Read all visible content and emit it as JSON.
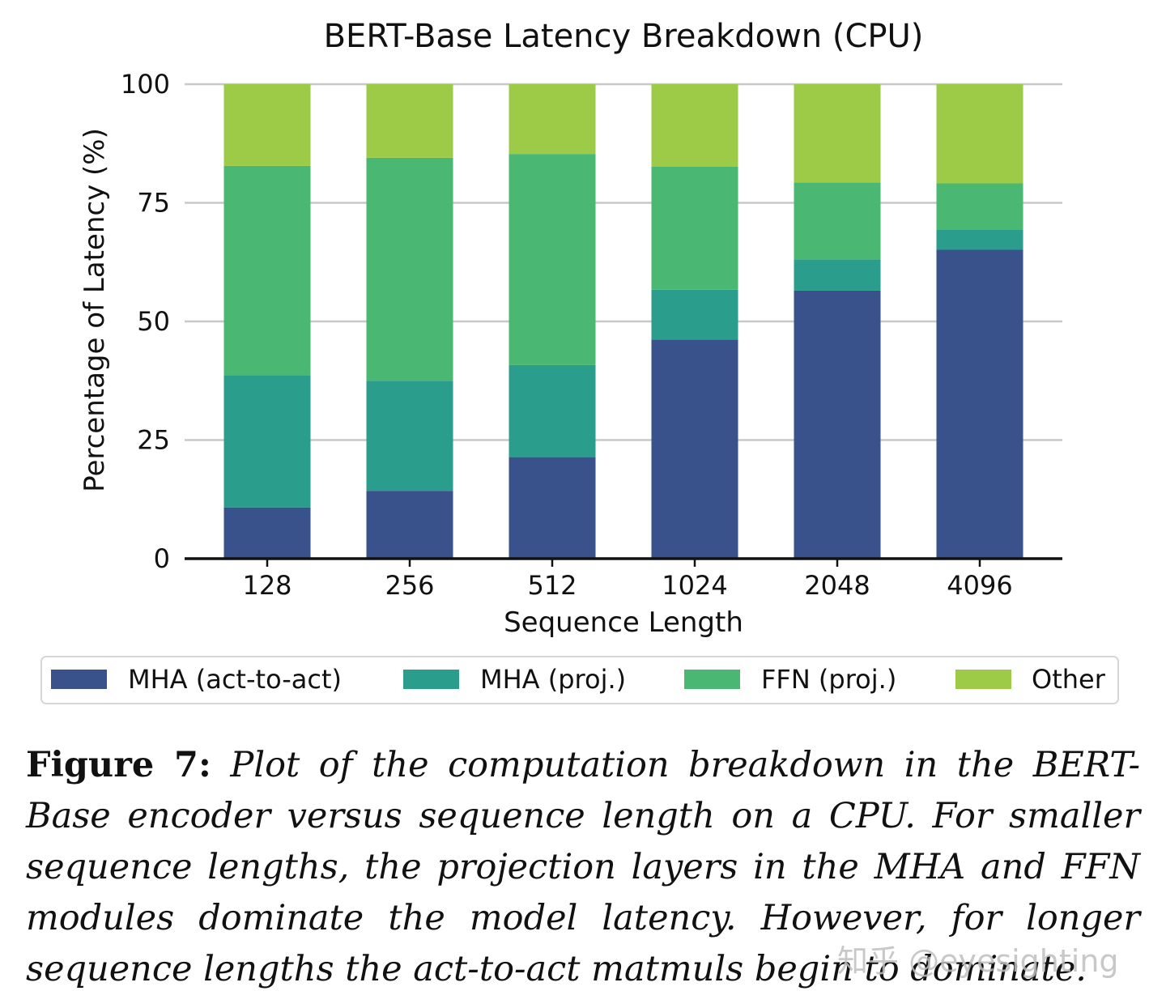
{
  "chart_data": {
    "type": "bar",
    "stacked": true,
    "title": "BERT-Base Latency Breakdown (CPU)",
    "xlabel": "Sequence Length",
    "ylabel": "Percentage of Latency (%)",
    "categories": [
      "128",
      "256",
      "512",
      "1024",
      "2048",
      "4096"
    ],
    "ylim": [
      0,
      100
    ],
    "yticks": [
      0,
      25,
      50,
      75,
      100
    ],
    "grid": "horizontal",
    "legend_position": "bottom",
    "series": [
      {
        "name": "MHA (act-to-act)",
        "color": "#3a528b",
        "values": [
          10.8,
          14.3,
          21.4,
          46.2,
          56.5,
          65.1
        ]
      },
      {
        "name": "MHA (proj.)",
        "color": "#2a9d8c",
        "values": [
          27.9,
          23.2,
          19.4,
          10.5,
          6.6,
          4.3
        ]
      },
      {
        "name": "FFN (proj.)",
        "color": "#4ab872",
        "values": [
          44.1,
          47.0,
          44.5,
          25.9,
          16.2,
          9.7
        ]
      },
      {
        "name": "Other",
        "color": "#9dcb47",
        "values": [
          17.2,
          15.5,
          14.7,
          17.4,
          20.7,
          20.9
        ]
      }
    ]
  },
  "caption": {
    "label": "Figure 7:",
    "text": "Plot of the computation breakdown in the BERT-Base encoder versus sequence length on a CPU. For smaller sequence lengths, the projection layers in the MHA and FFN modules dominate the model latency. However, for longer sequence lengths the act-to-act matmuls begin to dominate."
  },
  "watermark": "知乎 @eyesighting"
}
